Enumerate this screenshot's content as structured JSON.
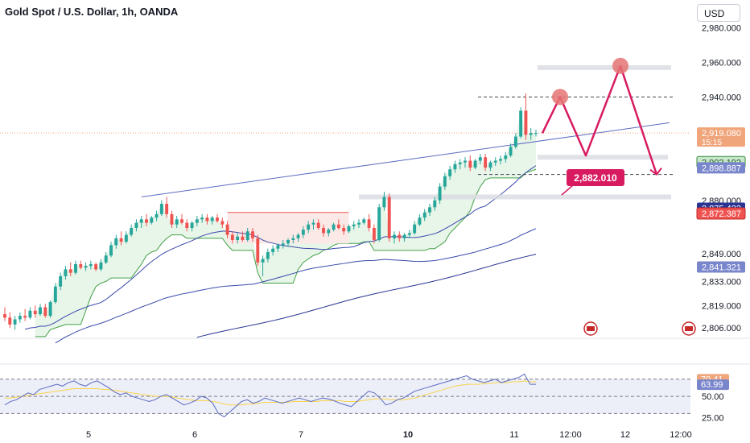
{
  "header": {
    "title": "Gold Spot / U.S. Dollar, 1h, OANDA",
    "currency_button": "USD"
  },
  "colors": {
    "up": "#26a69a",
    "down": "#ef5350",
    "projection": "#d81b60",
    "projection_dot": "#e57373",
    "trend_line": "#5c6bc0",
    "ma_dark": "#3949ab",
    "rsi_line": "#5c6bc0",
    "rsi_signal": "#f9d44a"
  },
  "chart_data": [
    {
      "type": "candlestick",
      "title": "Gold Spot / U.S. Dollar, 1h, OANDA",
      "x_tick_labels": [
        "5",
        "6",
        "7",
        "10",
        "11",
        "12:00",
        "12",
        "12:00"
      ],
      "y_tick_labels": [
        "2,980.000",
        "2,960.000",
        "2,940.000",
        "2,880.000",
        "2,849.000",
        "2,833.000",
        "2,819.000",
        "2,806.000"
      ],
      "ylim": [
        2800,
        2985
      ],
      "grid": false,
      "price_markers": [
        {
          "label": "2,919.080",
          "sub": "15:15",
          "value": 2919.08,
          "color": "#f0a57b",
          "text_color": "#ffffff"
        },
        {
          "label": "2,902.192",
          "value": 2902.192,
          "color": "#c8e6c9",
          "text_color": "#1b5e20",
          "border": "#388e3c"
        },
        {
          "label": "2,898.887",
          "value": 2898.887,
          "color": "#7986cb",
          "text_color": "#ffffff"
        },
        {
          "label": "2,875.433",
          "value": 2875.433,
          "color": "#283593",
          "text_color": "#ffffff"
        },
        {
          "label": "2,872.387",
          "value": 2872.387,
          "color": "#ef5350",
          "text_color": "#ffffff",
          "border": "#c62828"
        },
        {
          "label": "2,841.321",
          "value": 2841.321,
          "color": "#7986cb",
          "text_color": "#ffffff"
        }
      ],
      "annotations": [
        {
          "label": "2,882.010",
          "value": 2882.01
        }
      ],
      "projection_path": [
        2919,
        2940,
        2906,
        2958,
        2895
      ],
      "candles": [
        {
          "o": 2814,
          "h": 2818,
          "l": 2810,
          "c": 2812
        },
        {
          "o": 2812,
          "h": 2815,
          "l": 2806,
          "c": 2808
        },
        {
          "o": 2808,
          "h": 2813,
          "l": 2805,
          "c": 2811
        },
        {
          "o": 2811,
          "h": 2815,
          "l": 2809,
          "c": 2813
        },
        {
          "o": 2813,
          "h": 2817,
          "l": 2810,
          "c": 2812
        },
        {
          "o": 2812,
          "h": 2818,
          "l": 2811,
          "c": 2816
        },
        {
          "o": 2816,
          "h": 2819,
          "l": 2812,
          "c": 2814
        },
        {
          "o": 2814,
          "h": 2820,
          "l": 2813,
          "c": 2818
        },
        {
          "o": 2818,
          "h": 2820,
          "l": 2812,
          "c": 2813
        },
        {
          "o": 2813,
          "h": 2822,
          "l": 2812,
          "c": 2821
        },
        {
          "o": 2821,
          "h": 2832,
          "l": 2820,
          "c": 2830
        },
        {
          "o": 2830,
          "h": 2838,
          "l": 2828,
          "c": 2836
        },
        {
          "o": 2836,
          "h": 2842,
          "l": 2834,
          "c": 2840
        },
        {
          "o": 2840,
          "h": 2844,
          "l": 2836,
          "c": 2838
        },
        {
          "o": 2838,
          "h": 2845,
          "l": 2837,
          "c": 2843
        },
        {
          "o": 2843,
          "h": 2845,
          "l": 2840,
          "c": 2841
        },
        {
          "o": 2841,
          "h": 2844,
          "l": 2839,
          "c": 2842
        },
        {
          "o": 2842,
          "h": 2845,
          "l": 2840,
          "c": 2843
        },
        {
          "o": 2843,
          "h": 2844,
          "l": 2839,
          "c": 2840
        },
        {
          "o": 2840,
          "h": 2846,
          "l": 2839,
          "c": 2844
        },
        {
          "o": 2844,
          "h": 2850,
          "l": 2843,
          "c": 2848
        },
        {
          "o": 2848,
          "h": 2856,
          "l": 2847,
          "c": 2854
        },
        {
          "o": 2854,
          "h": 2860,
          "l": 2852,
          "c": 2858
        },
        {
          "o": 2858,
          "h": 2862,
          "l": 2854,
          "c": 2856
        },
        {
          "o": 2856,
          "h": 2862,
          "l": 2855,
          "c": 2860
        },
        {
          "o": 2860,
          "h": 2866,
          "l": 2859,
          "c": 2864
        },
        {
          "o": 2864,
          "h": 2869,
          "l": 2862,
          "c": 2867
        },
        {
          "o": 2867,
          "h": 2871,
          "l": 2864,
          "c": 2869
        },
        {
          "o": 2869,
          "h": 2872,
          "l": 2865,
          "c": 2867
        },
        {
          "o": 2867,
          "h": 2871,
          "l": 2866,
          "c": 2870
        },
        {
          "o": 2870,
          "h": 2874,
          "l": 2868,
          "c": 2872
        },
        {
          "o": 2872,
          "h": 2880,
          "l": 2871,
          "c": 2878
        },
        {
          "o": 2878,
          "h": 2882,
          "l": 2870,
          "c": 2872
        },
        {
          "o": 2872,
          "h": 2874,
          "l": 2864,
          "c": 2866
        },
        {
          "o": 2866,
          "h": 2871,
          "l": 2864,
          "c": 2869
        },
        {
          "o": 2869,
          "h": 2872,
          "l": 2866,
          "c": 2867
        },
        {
          "o": 2867,
          "h": 2869,
          "l": 2862,
          "c": 2864
        },
        {
          "o": 2864,
          "h": 2868,
          "l": 2862,
          "c": 2867
        },
        {
          "o": 2867,
          "h": 2871,
          "l": 2865,
          "c": 2869
        },
        {
          "o": 2869,
          "h": 2872,
          "l": 2867,
          "c": 2870
        },
        {
          "o": 2870,
          "h": 2872,
          "l": 2866,
          "c": 2868
        },
        {
          "o": 2868,
          "h": 2871,
          "l": 2866,
          "c": 2870
        },
        {
          "o": 2870,
          "h": 2872,
          "l": 2867,
          "c": 2868
        },
        {
          "o": 2868,
          "h": 2870,
          "l": 2864,
          "c": 2866
        },
        {
          "o": 2866,
          "h": 2868,
          "l": 2858,
          "c": 2860
        },
        {
          "o": 2860,
          "h": 2862,
          "l": 2855,
          "c": 2857
        },
        {
          "o": 2857,
          "h": 2861,
          "l": 2855,
          "c": 2859
        },
        {
          "o": 2859,
          "h": 2862,
          "l": 2856,
          "c": 2857
        },
        {
          "o": 2857,
          "h": 2864,
          "l": 2856,
          "c": 2862
        },
        {
          "o": 2862,
          "h": 2864,
          "l": 2856,
          "c": 2858
        },
        {
          "o": 2858,
          "h": 2860,
          "l": 2842,
          "c": 2844
        },
        {
          "o": 2844,
          "h": 2848,
          "l": 2836,
          "c": 2846
        },
        {
          "o": 2846,
          "h": 2852,
          "l": 2844,
          "c": 2850
        },
        {
          "o": 2850,
          "h": 2854,
          "l": 2848,
          "c": 2852
        },
        {
          "o": 2852,
          "h": 2855,
          "l": 2850,
          "c": 2854
        },
        {
          "o": 2854,
          "h": 2857,
          "l": 2852,
          "c": 2855
        },
        {
          "o": 2855,
          "h": 2858,
          "l": 2853,
          "c": 2857
        },
        {
          "o": 2857,
          "h": 2860,
          "l": 2855,
          "c": 2858
        },
        {
          "o": 2858,
          "h": 2861,
          "l": 2856,
          "c": 2860
        },
        {
          "o": 2860,
          "h": 2865,
          "l": 2858,
          "c": 2863
        },
        {
          "o": 2863,
          "h": 2868,
          "l": 2861,
          "c": 2866
        },
        {
          "o": 2866,
          "h": 2869,
          "l": 2863,
          "c": 2867
        },
        {
          "o": 2867,
          "h": 2869,
          "l": 2863,
          "c": 2864
        },
        {
          "o": 2864,
          "h": 2866,
          "l": 2859,
          "c": 2861
        },
        {
          "o": 2861,
          "h": 2864,
          "l": 2859,
          "c": 2863
        },
        {
          "o": 2863,
          "h": 2867,
          "l": 2862,
          "c": 2866
        },
        {
          "o": 2866,
          "h": 2869,
          "l": 2863,
          "c": 2864
        },
        {
          "o": 2864,
          "h": 2866,
          "l": 2860,
          "c": 2862
        },
        {
          "o": 2862,
          "h": 2866,
          "l": 2861,
          "c": 2865
        },
        {
          "o": 2865,
          "h": 2868,
          "l": 2863,
          "c": 2866
        },
        {
          "o": 2866,
          "h": 2869,
          "l": 2864,
          "c": 2867
        },
        {
          "o": 2867,
          "h": 2870,
          "l": 2866,
          "c": 2869
        },
        {
          "o": 2869,
          "h": 2872,
          "l": 2862,
          "c": 2864
        },
        {
          "o": 2864,
          "h": 2866,
          "l": 2855,
          "c": 2857
        },
        {
          "o": 2857,
          "h": 2878,
          "l": 2856,
          "c": 2876
        },
        {
          "o": 2876,
          "h": 2885,
          "l": 2874,
          "c": 2882
        },
        {
          "o": 2882,
          "h": 2884,
          "l": 2856,
          "c": 2858
        },
        {
          "o": 2858,
          "h": 2862,
          "l": 2855,
          "c": 2860
        },
        {
          "o": 2860,
          "h": 2862,
          "l": 2856,
          "c": 2858
        },
        {
          "o": 2858,
          "h": 2861,
          "l": 2856,
          "c": 2860
        },
        {
          "o": 2860,
          "h": 2863,
          "l": 2858,
          "c": 2861
        },
        {
          "o": 2861,
          "h": 2868,
          "l": 2860,
          "c": 2866
        },
        {
          "o": 2866,
          "h": 2872,
          "l": 2865,
          "c": 2870
        },
        {
          "o": 2870,
          "h": 2875,
          "l": 2868,
          "c": 2873
        },
        {
          "o": 2873,
          "h": 2878,
          "l": 2871,
          "c": 2876
        },
        {
          "o": 2876,
          "h": 2882,
          "l": 2874,
          "c": 2880
        },
        {
          "o": 2880,
          "h": 2890,
          "l": 2878,
          "c": 2888
        },
        {
          "o": 2888,
          "h": 2896,
          "l": 2886,
          "c": 2894
        },
        {
          "o": 2894,
          "h": 2900,
          "l": 2892,
          "c": 2898
        },
        {
          "o": 2898,
          "h": 2903,
          "l": 2896,
          "c": 2901
        },
        {
          "o": 2901,
          "h": 2904,
          "l": 2898,
          "c": 2902
        },
        {
          "o": 2902,
          "h": 2905,
          "l": 2899,
          "c": 2903
        },
        {
          "o": 2903,
          "h": 2906,
          "l": 2897,
          "c": 2899
        },
        {
          "o": 2899,
          "h": 2904,
          "l": 2898,
          "c": 2903
        },
        {
          "o": 2903,
          "h": 2907,
          "l": 2901,
          "c": 2905
        },
        {
          "o": 2905,
          "h": 2907,
          "l": 2897,
          "c": 2899
        },
        {
          "o": 2899,
          "h": 2903,
          "l": 2897,
          "c": 2902
        },
        {
          "o": 2902,
          "h": 2905,
          "l": 2900,
          "c": 2903
        },
        {
          "o": 2903,
          "h": 2906,
          "l": 2901,
          "c": 2904
        },
        {
          "o": 2904,
          "h": 2908,
          "l": 2902,
          "c": 2906
        },
        {
          "o": 2906,
          "h": 2913,
          "l": 2905,
          "c": 2911
        },
        {
          "o": 2911,
          "h": 2919,
          "l": 2910,
          "c": 2917
        },
        {
          "o": 2917,
          "h": 2934,
          "l": 2916,
          "c": 2932
        },
        {
          "o": 2932,
          "h": 2942,
          "l": 2915,
          "c": 2918
        },
        {
          "o": 2918,
          "h": 2922,
          "l": 2915,
          "c": 2919
        },
        {
          "o": 2919,
          "h": 2921,
          "l": 2917,
          "c": 2919.08
        }
      ]
    },
    {
      "type": "line",
      "title": "RSI",
      "y_tick_labels": [
        "50.00",
        "25.00"
      ],
      "value_labels": [
        {
          "label": "70.41",
          "color": "#f0a57b"
        },
        {
          "label": "63.99",
          "color": "#7986cb"
        }
      ],
      "ylim": [
        20,
        82
      ],
      "series": [
        {
          "values": [
            40,
            44,
            46,
            50,
            54,
            52,
            58,
            60,
            62,
            64,
            62,
            66,
            68,
            64,
            62,
            66,
            68,
            64,
            60,
            55,
            52,
            54,
            50,
            48,
            46,
            44,
            46,
            50,
            52,
            48,
            44,
            40,
            42,
            45,
            50,
            48,
            42,
            30,
            26,
            32,
            38,
            44,
            46,
            42,
            44,
            48,
            46,
            44,
            42,
            44,
            46,
            48,
            46,
            44,
            46,
            48,
            47,
            45,
            42,
            40,
            38,
            44,
            50,
            56,
            54,
            48,
            40,
            42,
            46,
            48,
            52,
            56,
            58,
            60,
            62,
            64,
            66,
            68,
            70,
            72,
            74,
            70,
            68,
            66,
            68,
            70,
            66,
            68,
            70,
            72,
            76,
            64,
            64
          ]
        },
        {
          "values": [
            48,
            48,
            49,
            50,
            51,
            52,
            53,
            54,
            55,
            56,
            57,
            58,
            59,
            59,
            59,
            59,
            59,
            58,
            58,
            57,
            56,
            55,
            54,
            53,
            52,
            51,
            50,
            50,
            50,
            49,
            48,
            47,
            46,
            45,
            45,
            45,
            44,
            43,
            41,
            40,
            40,
            40,
            41,
            41,
            42,
            43,
            43,
            43,
            43,
            43,
            44,
            44,
            44,
            44,
            44,
            45,
            45,
            45,
            45,
            44,
            44,
            44,
            45,
            46,
            47,
            47,
            47,
            46,
            46,
            46,
            47,
            48,
            50,
            52,
            54,
            56,
            58,
            60,
            62,
            63,
            64,
            64,
            64,
            65,
            65,
            66,
            66,
            66,
            67,
            67,
            68,
            67,
            67
          ]
        }
      ],
      "levels": [
        70,
        50,
        30
      ]
    }
  ]
}
